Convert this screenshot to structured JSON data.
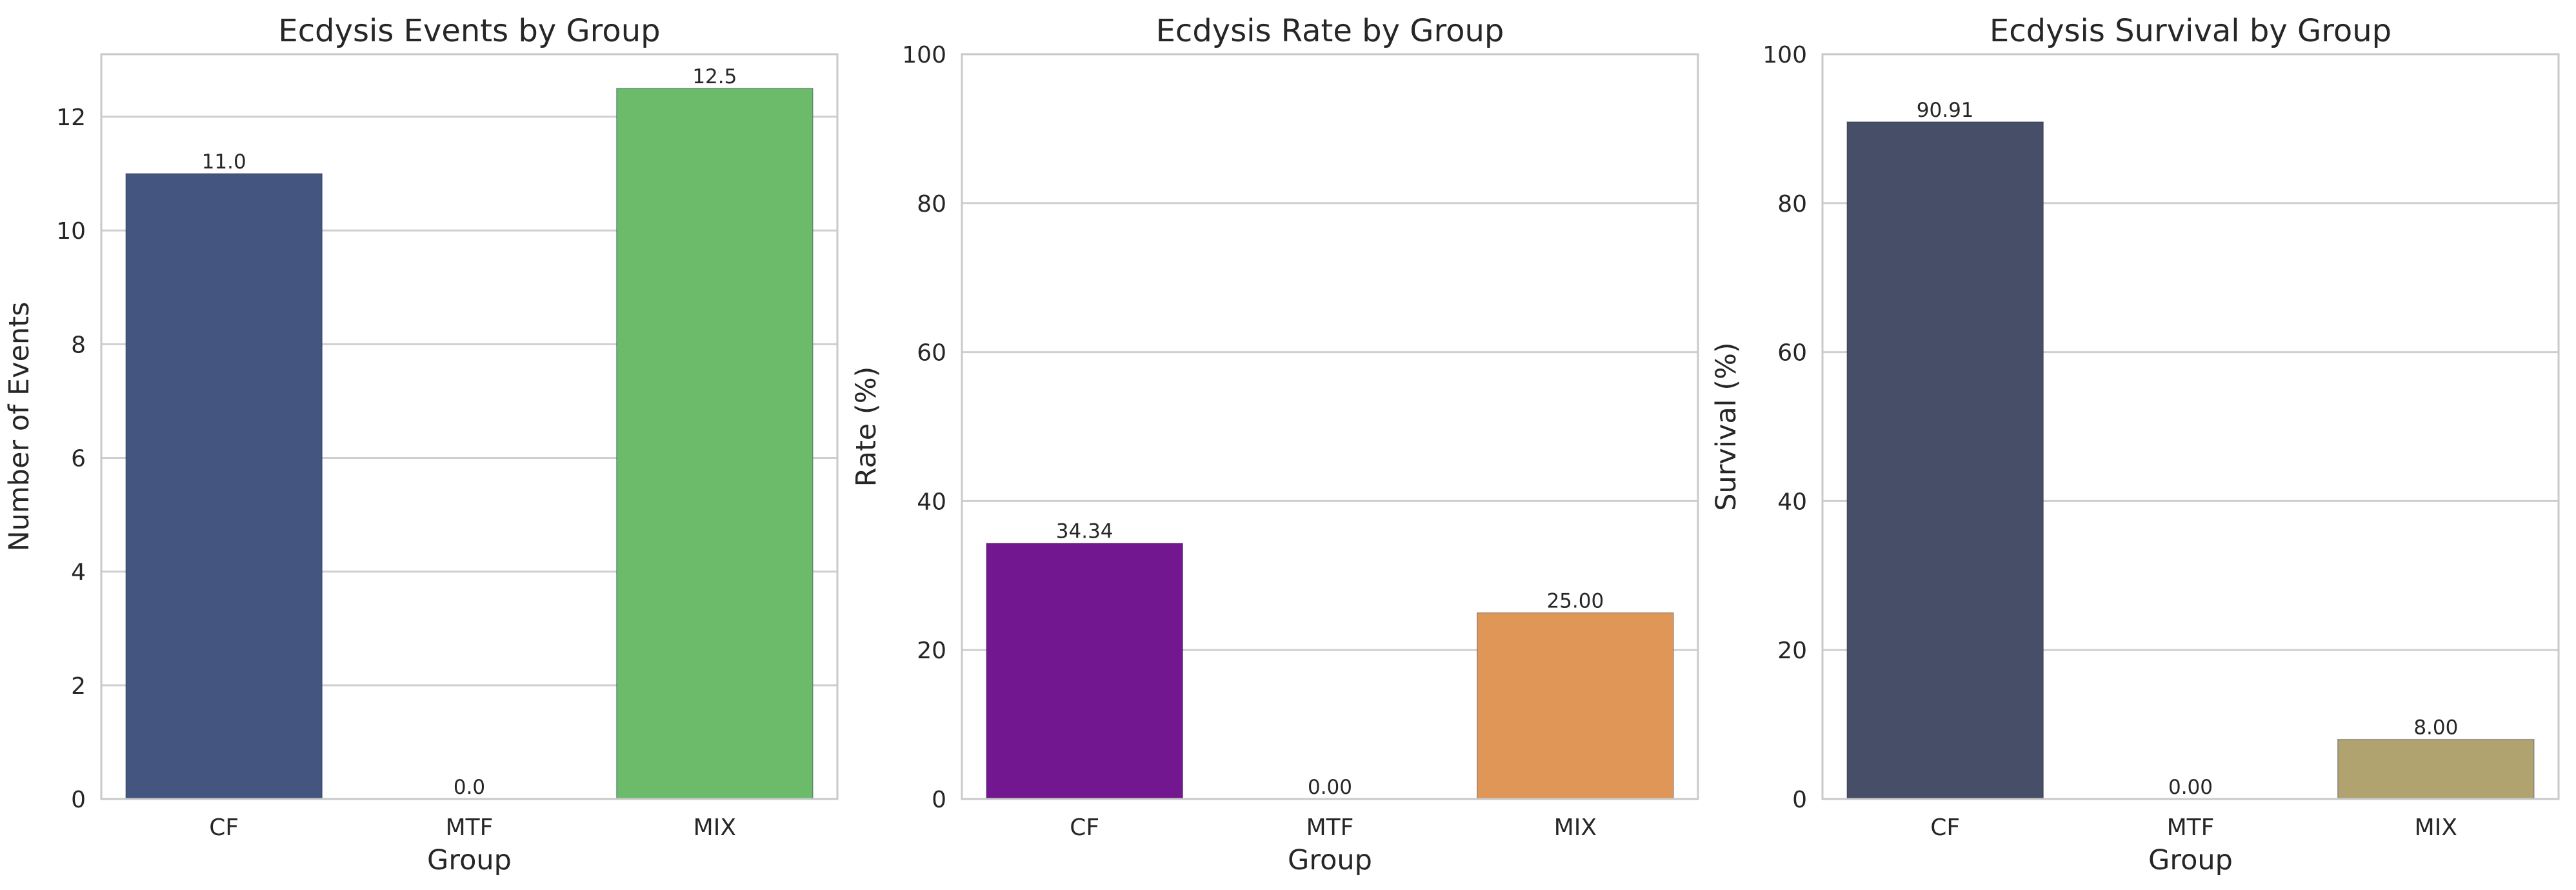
{
  "chart_data": [
    {
      "type": "bar",
      "title": "Ecdysis Events by Group",
      "xlabel": "Group",
      "ylabel": "Number of Events",
      "categories": [
        "CF",
        "MTF",
        "MIX"
      ],
      "values": [
        11.0,
        0.0,
        12.5
      ],
      "value_labels": [
        "11.0",
        "0.0",
        "12.5"
      ],
      "colors": [
        "#44567f",
        "#3a8f8a",
        "#6bbb6b"
      ],
      "ylim": [
        0,
        13.1
      ],
      "yticks": [
        0,
        2,
        4,
        6,
        8,
        10,
        12
      ],
      "grid": true
    },
    {
      "type": "bar",
      "title": "Ecdysis Rate by Group",
      "xlabel": "Group",
      "ylabel": "Rate (%)",
      "categories": [
        "CF",
        "MTF",
        "MIX"
      ],
      "values": [
        34.34,
        0.0,
        25.0
      ],
      "value_labels": [
        "34.34",
        "0.00",
        "25.00"
      ],
      "colors": [
        "#731790",
        "#c04a6a",
        "#e09657"
      ],
      "ylim": [
        0,
        100
      ],
      "yticks": [
        0,
        20,
        40,
        60,
        80,
        100
      ],
      "grid": true
    },
    {
      "type": "bar",
      "title": "Ecdysis Survival by Group",
      "xlabel": "Group",
      "ylabel": "Survival (%)",
      "categories": [
        "CF",
        "MTF",
        "MIX"
      ],
      "values": [
        90.91,
        0.0,
        8.0
      ],
      "value_labels": [
        "90.91",
        "0.00",
        "8.00"
      ],
      "colors": [
        "#474e68",
        "#7c7b6a",
        "#b0a370"
      ],
      "ylim": [
        0,
        100
      ],
      "yticks": [
        0,
        20,
        40,
        60,
        80,
        100
      ],
      "grid": true
    }
  ]
}
